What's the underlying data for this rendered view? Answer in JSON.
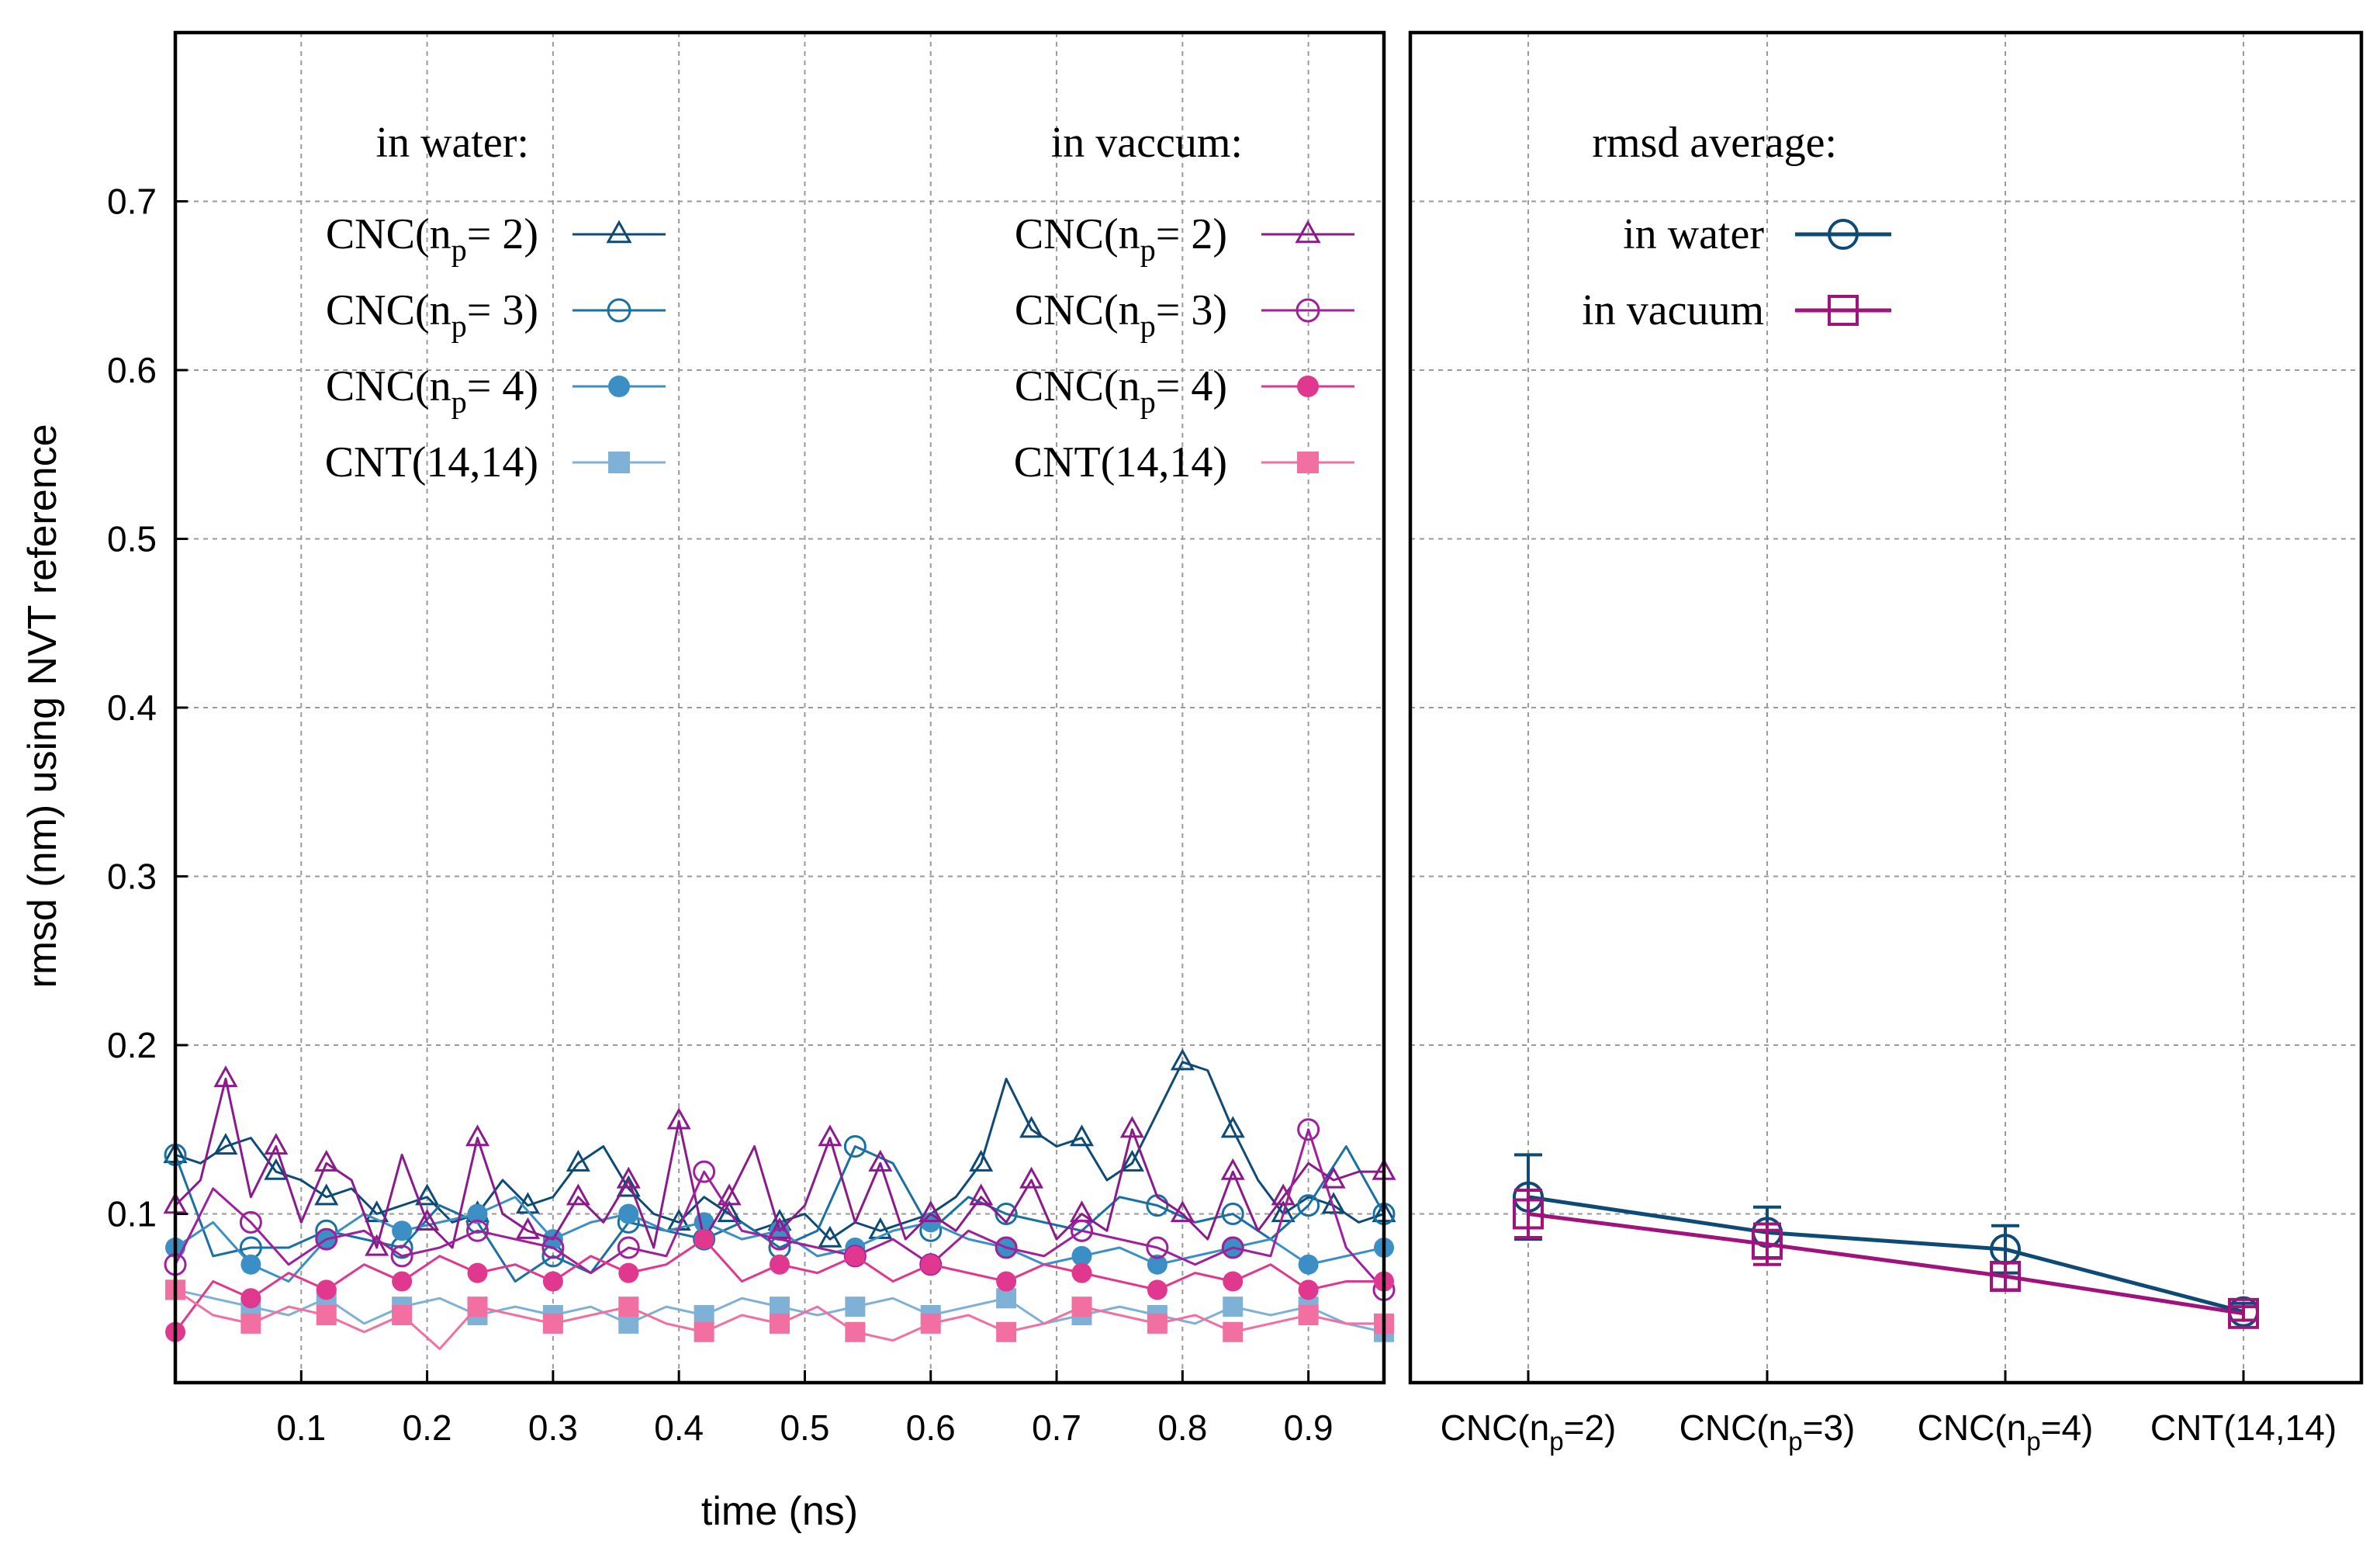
{
  "chart_data": [
    {
      "type": "line",
      "panel": "time-series",
      "xlabel": "time (ns)",
      "ylabel": "rmsd (nm) using NVT reference",
      "xlim": [
        0.0,
        0.96
      ],
      "ylim": [
        0.0,
        0.8
      ],
      "xticks": [
        "0.1",
        "0.2",
        "0.3",
        "0.4",
        "0.5",
        "0.6",
        "0.7",
        "0.8",
        "0.9"
      ],
      "yticks": [
        "0.1",
        "0.2",
        "0.3",
        "0.4",
        "0.5",
        "0.6",
        "0.7"
      ],
      "grid": true,
      "legend_groups": [
        {
          "title": "in water:",
          "placement": "top-left"
        },
        {
          "title": "in vaccum:",
          "placement": "top-center"
        }
      ],
      "series": [
        {
          "name": "CNC(n_p= 2)",
          "base": "CNC(n",
          "sub": "p",
          "rest": "= 2)",
          "group": "in water:",
          "color": "#0d4a75",
          "marker": "triangle-open",
          "x": [
            0.0,
            0.02,
            0.04,
            0.06,
            0.08,
            0.1,
            0.12,
            0.14,
            0.16,
            0.18,
            0.2,
            0.22,
            0.24,
            0.26,
            0.28,
            0.3,
            0.32,
            0.34,
            0.36,
            0.38,
            0.4,
            0.42,
            0.44,
            0.46,
            0.48,
            0.5,
            0.52,
            0.54,
            0.56,
            0.58,
            0.6,
            0.62,
            0.64,
            0.66,
            0.68,
            0.7,
            0.72,
            0.74,
            0.76,
            0.78,
            0.8,
            0.82,
            0.84,
            0.86,
            0.88,
            0.9,
            0.92,
            0.94,
            0.96
          ],
          "y": [
            0.135,
            0.13,
            0.14,
            0.145,
            0.125,
            0.12,
            0.11,
            0.115,
            0.1,
            0.105,
            0.11,
            0.095,
            0.1,
            0.12,
            0.105,
            0.11,
            0.13,
            0.14,
            0.115,
            0.1,
            0.095,
            0.11,
            0.1,
            0.09,
            0.095,
            0.1,
            0.085,
            0.095,
            0.09,
            0.095,
            0.1,
            0.11,
            0.13,
            0.18,
            0.15,
            0.14,
            0.145,
            0.12,
            0.13,
            0.16,
            0.19,
            0.185,
            0.15,
            0.12,
            0.1,
            0.11,
            0.105,
            0.095,
            0.1
          ]
        },
        {
          "name": "CNC(n_p= 3)",
          "base": "CNC(n",
          "sub": "p",
          "rest": "= 3)",
          "group": "in water:",
          "color": "#1a6fa3",
          "marker": "circle-open",
          "x": [
            0.0,
            0.03,
            0.06,
            0.09,
            0.12,
            0.15,
            0.18,
            0.21,
            0.24,
            0.27,
            0.3,
            0.33,
            0.36,
            0.39,
            0.42,
            0.45,
            0.48,
            0.51,
            0.54,
            0.57,
            0.6,
            0.63,
            0.66,
            0.69,
            0.72,
            0.75,
            0.78,
            0.81,
            0.84,
            0.87,
            0.9,
            0.93,
            0.96
          ],
          "y": [
            0.135,
            0.075,
            0.08,
            0.08,
            0.09,
            0.085,
            0.08,
            0.105,
            0.095,
            0.06,
            0.075,
            0.065,
            0.095,
            0.09,
            0.085,
            0.095,
            0.08,
            0.09,
            0.14,
            0.13,
            0.09,
            0.11,
            0.1,
            0.095,
            0.09,
            0.11,
            0.105,
            0.095,
            0.1,
            0.085,
            0.105,
            0.14,
            0.1
          ]
        },
        {
          "name": "CNC(n_p= 4)",
          "base": "CNC(n",
          "sub": "p",
          "rest": "= 4)",
          "group": "in water:",
          "color": "#3c8fc4",
          "marker": "circle-filled",
          "x": [
            0.0,
            0.03,
            0.06,
            0.09,
            0.12,
            0.15,
            0.18,
            0.21,
            0.24,
            0.27,
            0.3,
            0.33,
            0.36,
            0.39,
            0.42,
            0.45,
            0.48,
            0.51,
            0.54,
            0.57,
            0.6,
            0.63,
            0.66,
            0.69,
            0.72,
            0.75,
            0.78,
            0.81,
            0.84,
            0.87,
            0.9,
            0.93,
            0.96
          ],
          "y": [
            0.08,
            0.095,
            0.07,
            0.06,
            0.085,
            0.1,
            0.09,
            0.095,
            0.1,
            0.11,
            0.085,
            0.095,
            0.1,
            0.09,
            0.095,
            0.085,
            0.09,
            0.075,
            0.08,
            0.09,
            0.095,
            0.085,
            0.08,
            0.07,
            0.075,
            0.08,
            0.07,
            0.075,
            0.08,
            0.085,
            0.07,
            0.075,
            0.08
          ]
        },
        {
          "name": "CNT(14,14)",
          "base": "CNT(14,14)",
          "sub": "",
          "rest": "",
          "group": "in water:",
          "color": "#7fb1d6",
          "marker": "square-filled",
          "x": [
            0.0,
            0.03,
            0.06,
            0.09,
            0.12,
            0.15,
            0.18,
            0.21,
            0.24,
            0.27,
            0.3,
            0.33,
            0.36,
            0.39,
            0.42,
            0.45,
            0.48,
            0.51,
            0.54,
            0.57,
            0.6,
            0.63,
            0.66,
            0.69,
            0.72,
            0.75,
            0.78,
            0.81,
            0.84,
            0.87,
            0.9,
            0.93,
            0.96
          ],
          "y": [
            0.055,
            0.05,
            0.045,
            0.04,
            0.05,
            0.035,
            0.045,
            0.05,
            0.04,
            0.045,
            0.04,
            0.045,
            0.035,
            0.045,
            0.04,
            0.05,
            0.045,
            0.04,
            0.045,
            0.05,
            0.04,
            0.045,
            0.05,
            0.035,
            0.04,
            0.045,
            0.04,
            0.035,
            0.045,
            0.04,
            0.045,
            0.035,
            0.03
          ]
        },
        {
          "name": "CNC(n_p= 2)",
          "base": "CNC(n",
          "sub": "p",
          "rest": "= 2)",
          "group": "in vaccum:",
          "color": "#8b1a8b",
          "marker": "triangle-open",
          "x": [
            0.0,
            0.02,
            0.04,
            0.06,
            0.08,
            0.1,
            0.12,
            0.14,
            0.16,
            0.18,
            0.2,
            0.22,
            0.24,
            0.26,
            0.28,
            0.3,
            0.32,
            0.34,
            0.36,
            0.38,
            0.4,
            0.42,
            0.44,
            0.46,
            0.48,
            0.5,
            0.52,
            0.54,
            0.56,
            0.58,
            0.6,
            0.62,
            0.64,
            0.66,
            0.68,
            0.7,
            0.72,
            0.74,
            0.76,
            0.78,
            0.8,
            0.82,
            0.84,
            0.86,
            0.88,
            0.9,
            0.92,
            0.94,
            0.96
          ],
          "y": [
            0.105,
            0.12,
            0.18,
            0.11,
            0.14,
            0.095,
            0.13,
            0.12,
            0.08,
            0.135,
            0.095,
            0.08,
            0.145,
            0.1,
            0.09,
            0.085,
            0.11,
            0.095,
            0.12,
            0.08,
            0.155,
            0.085,
            0.11,
            0.14,
            0.09,
            0.105,
            0.145,
            0.095,
            0.13,
            0.085,
            0.1,
            0.09,
            0.11,
            0.095,
            0.12,
            0.085,
            0.1,
            0.09,
            0.15,
            0.11,
            0.1,
            0.085,
            0.125,
            0.09,
            0.11,
            0.13,
            0.12,
            0.125,
            0.125
          ]
        },
        {
          "name": "CNC(n_p= 3)",
          "base": "CNC(n",
          "sub": "p",
          "rest": "= 3)",
          "group": "in vaccum:",
          "color": "#a0209c",
          "marker": "circle-open",
          "x": [
            0.0,
            0.03,
            0.06,
            0.09,
            0.12,
            0.15,
            0.18,
            0.21,
            0.24,
            0.27,
            0.3,
            0.33,
            0.36,
            0.39,
            0.42,
            0.45,
            0.48,
            0.51,
            0.54,
            0.57,
            0.6,
            0.63,
            0.66,
            0.69,
            0.72,
            0.75,
            0.78,
            0.81,
            0.84,
            0.87,
            0.9,
            0.93,
            0.96
          ],
          "y": [
            0.07,
            0.115,
            0.095,
            0.07,
            0.085,
            0.09,
            0.075,
            0.08,
            0.09,
            0.085,
            0.08,
            0.065,
            0.08,
            0.075,
            0.125,
            0.09,
            0.085,
            0.08,
            0.075,
            0.085,
            0.07,
            0.09,
            0.08,
            0.075,
            0.09,
            0.085,
            0.08,
            0.07,
            0.08,
            0.075,
            0.15,
            0.08,
            0.055
          ]
        },
        {
          "name": "CNC(n_p= 4)",
          "base": "CNC(n",
          "sub": "p",
          "rest": "= 4)",
          "group": "in vaccum:",
          "color": "#e0378f",
          "marker": "circle-filled",
          "x": [
            0.0,
            0.03,
            0.06,
            0.09,
            0.12,
            0.15,
            0.18,
            0.21,
            0.24,
            0.27,
            0.3,
            0.33,
            0.36,
            0.39,
            0.42,
            0.45,
            0.48,
            0.51,
            0.54,
            0.57,
            0.6,
            0.63,
            0.66,
            0.69,
            0.72,
            0.75,
            0.78,
            0.81,
            0.84,
            0.87,
            0.9,
            0.93,
            0.96
          ],
          "y": [
            0.03,
            0.06,
            0.05,
            0.065,
            0.055,
            0.07,
            0.06,
            0.075,
            0.065,
            0.07,
            0.06,
            0.075,
            0.065,
            0.07,
            0.085,
            0.06,
            0.07,
            0.065,
            0.075,
            0.06,
            0.07,
            0.065,
            0.06,
            0.07,
            0.065,
            0.06,
            0.055,
            0.065,
            0.06,
            0.07,
            0.055,
            0.06,
            0.06
          ]
        },
        {
          "name": "CNT(14,14)",
          "base": "CNT(14,14)",
          "sub": "",
          "rest": "",
          "group": "in vaccum:",
          "color": "#f26fa2",
          "marker": "square-filled",
          "x": [
            0.0,
            0.03,
            0.06,
            0.09,
            0.12,
            0.15,
            0.18,
            0.21,
            0.24,
            0.27,
            0.3,
            0.33,
            0.36,
            0.39,
            0.42,
            0.45,
            0.48,
            0.51,
            0.54,
            0.57,
            0.6,
            0.63,
            0.66,
            0.69,
            0.72,
            0.75,
            0.78,
            0.81,
            0.84,
            0.87,
            0.9,
            0.93,
            0.96
          ],
          "y": [
            0.055,
            0.04,
            0.035,
            0.045,
            0.04,
            0.03,
            0.04,
            0.02,
            0.045,
            0.04,
            0.035,
            0.04,
            0.045,
            0.035,
            0.03,
            0.04,
            0.035,
            0.045,
            0.03,
            0.025,
            0.035,
            0.04,
            0.03,
            0.035,
            0.045,
            0.04,
            0.035,
            0.04,
            0.03,
            0.035,
            0.04,
            0.035,
            0.035
          ]
        }
      ]
    },
    {
      "type": "line",
      "panel": "averages",
      "categories": [
        {
          "base": "CNC(n",
          "sub": "p",
          "rest": "=2)"
        },
        {
          "base": "CNC(n",
          "sub": "p",
          "rest": "=3)"
        },
        {
          "base": "CNC(n",
          "sub": "p",
          "rest": "=4)"
        },
        {
          "base": "CNT(14,14)",
          "sub": "",
          "rest": ""
        }
      ],
      "ylim": [
        0.0,
        0.8
      ],
      "grid": true,
      "legend_title": "rmsd average:",
      "legend_placement": "top-center",
      "series": [
        {
          "name": "in water",
          "color": "#0d4a75",
          "marker": "circle-open",
          "values": [
            0.11,
            0.089,
            0.079,
            0.042
          ],
          "errors": [
            0.025,
            0.015,
            0.014,
            0.005
          ]
        },
        {
          "name": "in vacuum",
          "color": "#a0137c",
          "marker": "square-open",
          "values": [
            0.1,
            0.082,
            0.063,
            0.041
          ],
          "errors": [
            0.014,
            0.012,
            0.008,
            0.004
          ]
        }
      ]
    }
  ]
}
